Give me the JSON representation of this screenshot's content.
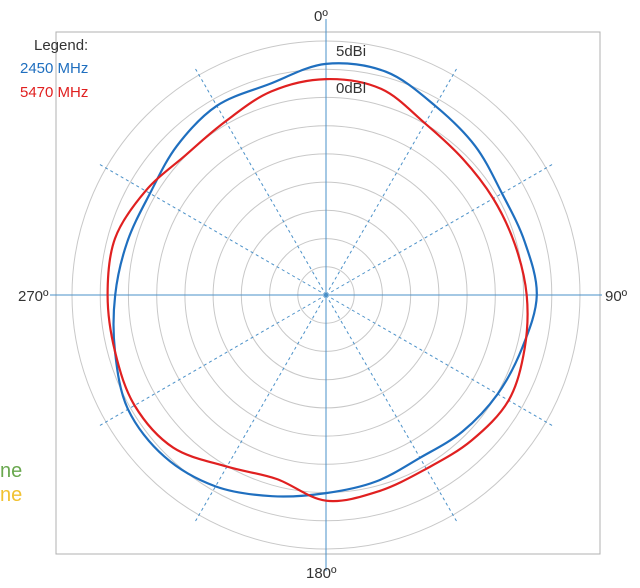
{
  "chart_data": {
    "type": "polar-line",
    "title": "",
    "legend": {
      "title": "Legend:",
      "placement": "top-left"
    },
    "angle_labels": {
      "top": "0º",
      "right": "90º",
      "bottom": "180º",
      "left": "270º"
    },
    "ring_labels": [
      "5dBi",
      "0dBl"
    ],
    "rings": 9,
    "spokes_deg": [
      0,
      30,
      60,
      90,
      120,
      150,
      180,
      210,
      240,
      270,
      300,
      330
    ],
    "grid": true,
    "radius_unit": "normalized radius (outer ring = 1.0)",
    "theta_step_deg": 15,
    "series": [
      {
        "name": "2450 MHz",
        "color": "#1f6fbf",
        "r": [
          0.91,
          0.91,
          0.86,
          0.83,
          0.8,
          0.81,
          0.83,
          0.8,
          0.78,
          0.76,
          0.74,
          0.76,
          0.78,
          0.82,
          0.87,
          0.9,
          0.9,
          0.86,
          0.83,
          0.81,
          0.8,
          0.83,
          0.86,
          0.86
        ]
      },
      {
        "name": "5470 MHz",
        "color": "#e02020",
        "r": [
          0.85,
          0.84,
          0.78,
          0.76,
          0.76,
          0.77,
          0.79,
          0.81,
          0.83,
          0.81,
          0.79,
          0.8,
          0.81,
          0.75,
          0.78,
          0.85,
          0.87,
          0.86,
          0.86,
          0.86,
          0.82,
          0.78,
          0.79,
          0.83
        ]
      }
    ]
  },
  "side_fragments": [
    {
      "text": "ne",
      "color": "#6aa84f"
    },
    {
      "text": "ne",
      "color": "#f1c232"
    }
  ]
}
